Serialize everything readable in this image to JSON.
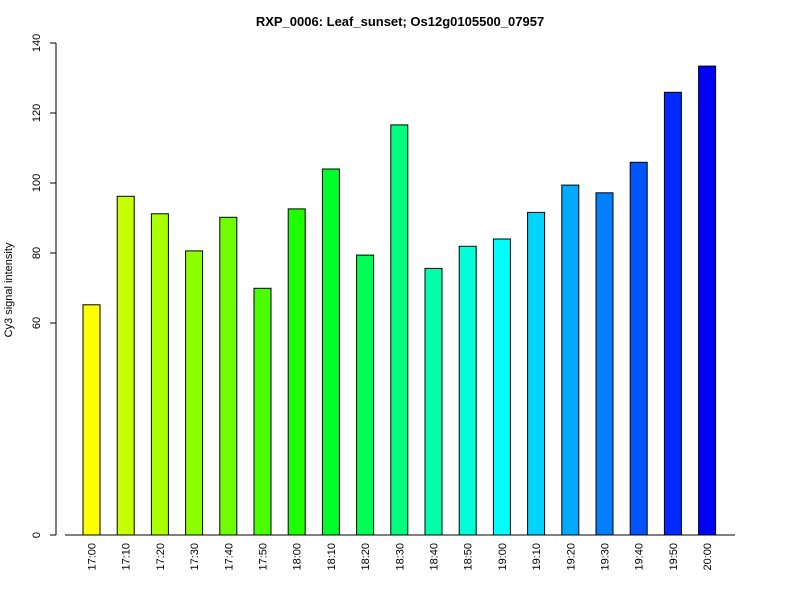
{
  "chart_data": {
    "type": "bar",
    "title": "RXP_0006: Leaf_sunset; Os12g0105500_07957",
    "xlabel": "",
    "ylabel": "Cy3 signal intensity",
    "categories": [
      "17:00",
      "17:10",
      "17:20",
      "17:30",
      "17:40",
      "17:50",
      "18:00",
      "18:10",
      "18:20",
      "18:30",
      "18:40",
      "18:50",
      "19:00",
      "19:10",
      "19:20",
      "19:30",
      "19:40",
      "19:50",
      "20:00"
    ],
    "values": [
      65.2,
      96.2,
      91.2,
      80.6,
      90.2,
      69.9,
      92.6,
      104.0,
      79.4,
      116.6,
      75.6,
      81.9,
      84.0,
      91.6,
      99.4,
      97.2,
      105.9,
      125.9,
      133.4
    ],
    "colors": [
      "#FFFF00",
      "#C8FF00",
      "#AAFF00",
      "#8CFF00",
      "#6EFF00",
      "#4BFF00",
      "#1EFF00",
      "#00FF2A",
      "#00FF55",
      "#00FF7F",
      "#00FFAA",
      "#00FFD4",
      "#00FFFF",
      "#00D4FF",
      "#00AAFF",
      "#007FFF",
      "#0055FF",
      "#002AFF",
      "#0000FF"
    ],
    "yticks": [
      "0",
      "60",
      "80",
      "100",
      "120",
      "140"
    ],
    "ytick_values": [
      0,
      60,
      80,
      100,
      120,
      140
    ],
    "ylim": [
      0,
      140
    ],
    "y_scale": "broken-linear: 0 and 60–140",
    "grid": false,
    "legend": "none"
  }
}
